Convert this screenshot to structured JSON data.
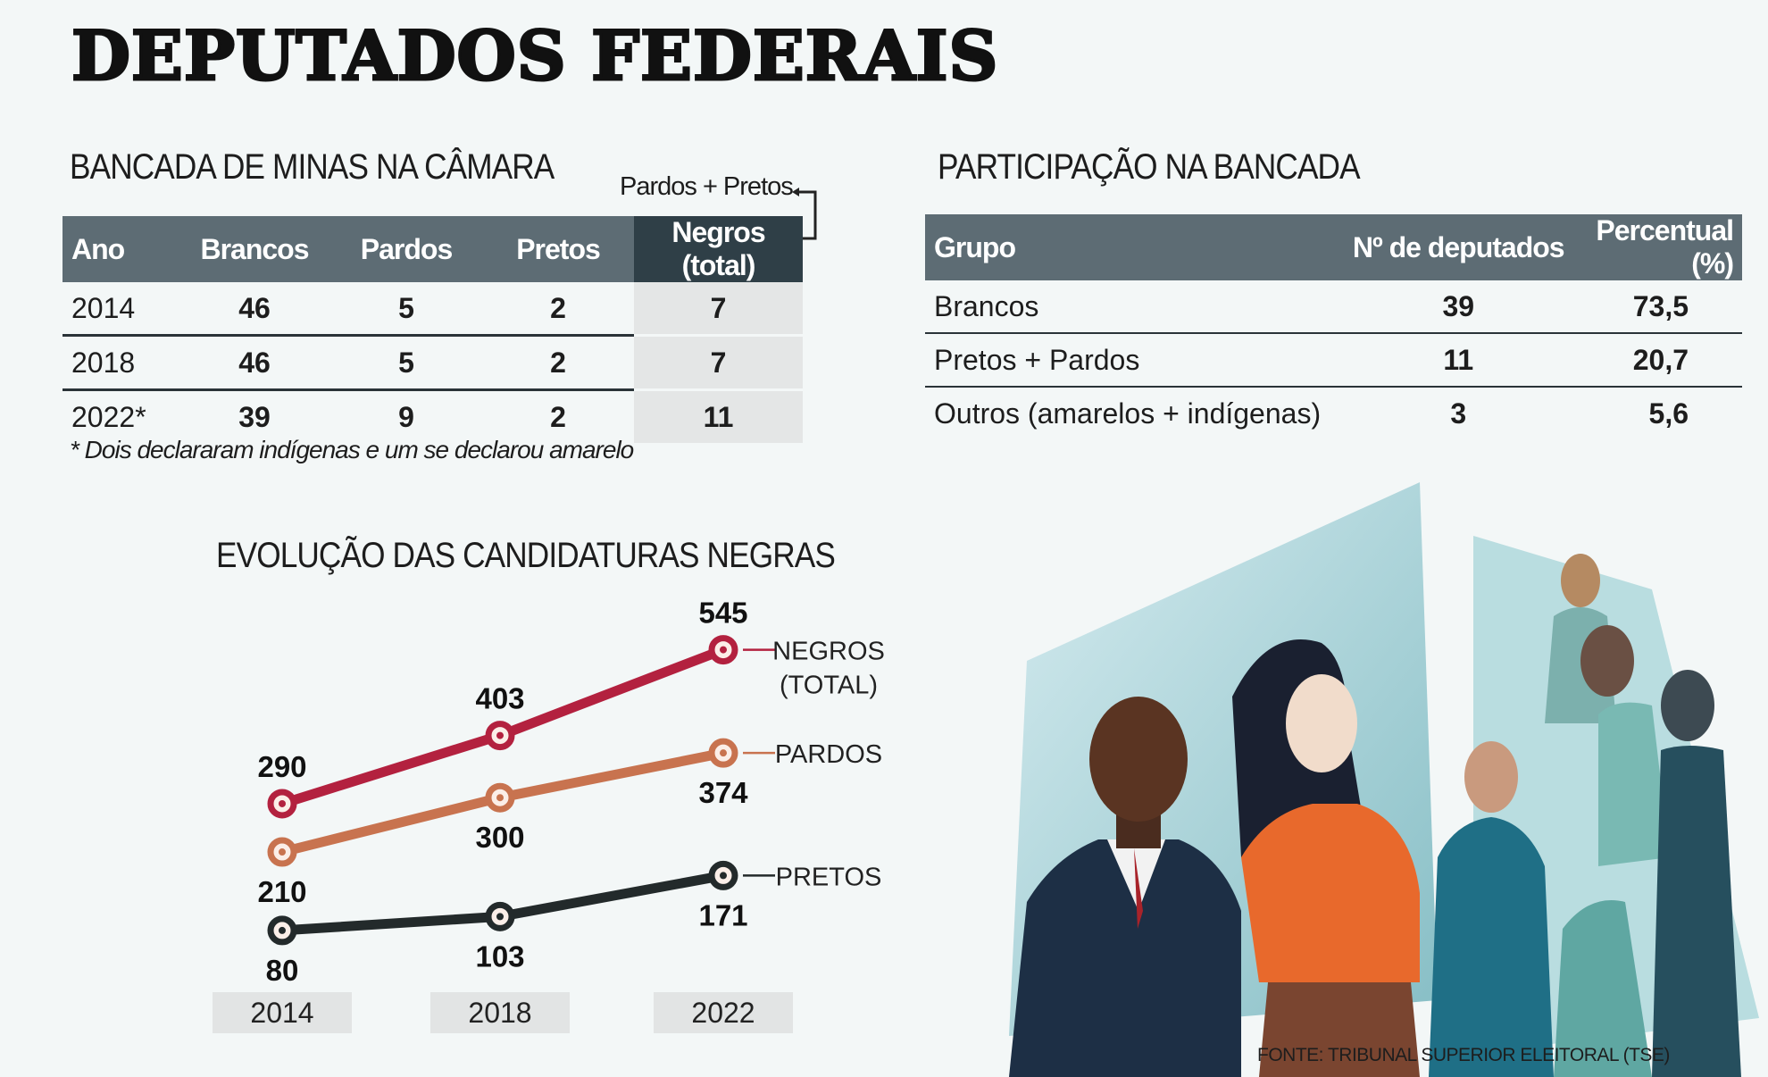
{
  "title": "DEPUTADOS FEDERAIS",
  "bancada": {
    "heading": "BANCADA DE MINAS NA CÂMARA",
    "annotation": "Pardos + Pretos",
    "columns": [
      "Ano",
      "Brancos",
      "Pardos",
      "Pretos",
      "Negros (total)"
    ],
    "rows": [
      [
        "2014",
        "46",
        "5",
        "2",
        "7"
      ],
      [
        "2018",
        "46",
        "5",
        "2",
        "7"
      ],
      [
        "2022*",
        "39",
        "9",
        "2",
        "11"
      ]
    ],
    "footnote": "* Dois declararam indígenas e um se declarou amarelo"
  },
  "participacao": {
    "heading": "PARTICIPAÇÃO NA BANCADA",
    "columns": [
      "Grupo",
      "Nº de deputados",
      "Percentual (%)"
    ],
    "rows": [
      [
        "Brancos",
        "39",
        "73,5"
      ],
      [
        "Pretos + Pardos",
        "11",
        "20,7"
      ],
      [
        "Outros (amarelos + indígenas)",
        "3",
        "5,6"
      ]
    ]
  },
  "chart_data": {
    "type": "line",
    "title": "EVOLUÇÃO DAS CANDIDATURAS NEGRAS",
    "categories": [
      "2014",
      "2018",
      "2022"
    ],
    "series": [
      {
        "name": "NEGROS (TOTAL)",
        "values": [
          290,
          403,
          545
        ],
        "color": "#b3213f"
      },
      {
        "name": "PARDOS",
        "values": [
          210,
          300,
          374
        ],
        "color": "#c8734f"
      },
      {
        "name": "PRETOS",
        "values": [
          80,
          103,
          171
        ],
        "color": "#232a2b"
      }
    ],
    "grid": false,
    "legend": "right"
  },
  "source": "FONTE: TRIBUNAL SUPERIOR ELEITORAL (TSE)"
}
